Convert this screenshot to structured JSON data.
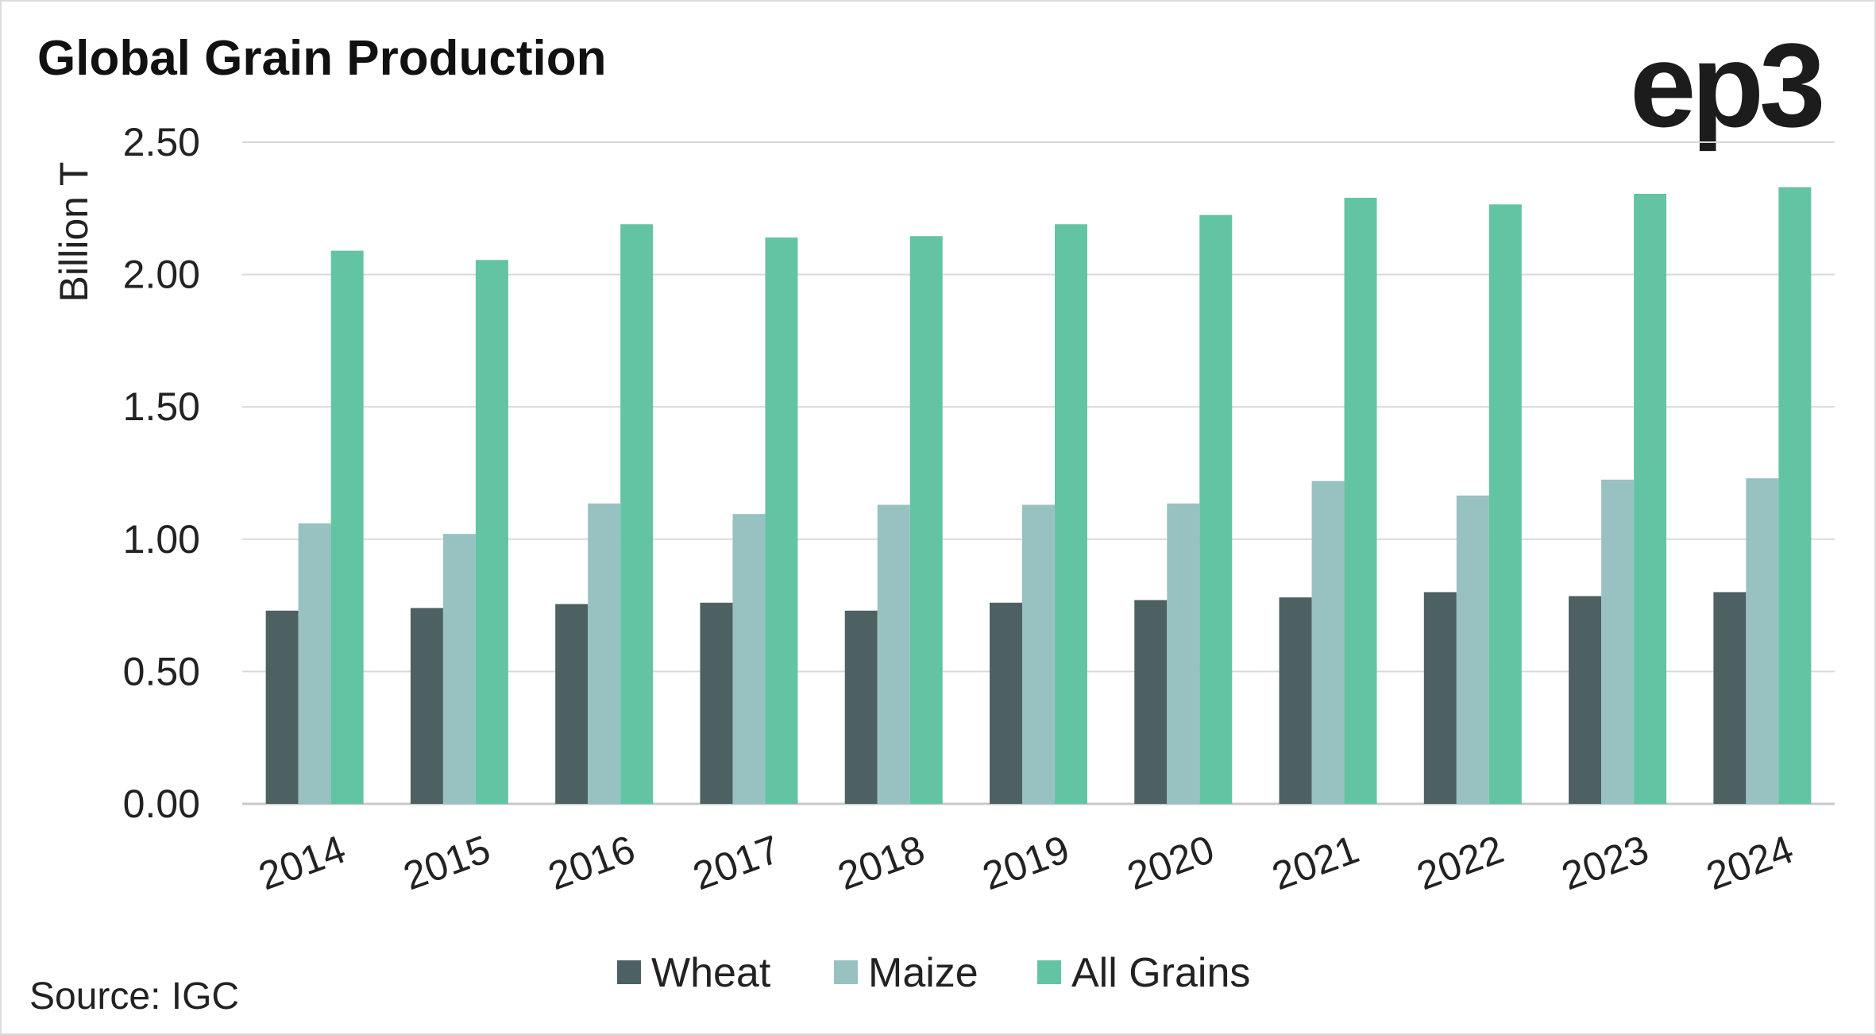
{
  "chart_data": {
    "type": "bar",
    "title": "Global Grain Production",
    "ylabel": "Billion T",
    "xlabel": "",
    "ylim": [
      0,
      2.5
    ],
    "yticks": [
      "0.00",
      "0.50",
      "1.00",
      "1.50",
      "2.00",
      "2.50"
    ],
    "ytick_values": [
      0,
      0.5,
      1.0,
      1.5,
      2.0,
      2.5
    ],
    "categories": [
      "2014",
      "2015",
      "2016",
      "2017",
      "2018",
      "2019",
      "2020",
      "2021",
      "2022",
      "2023",
      "2024"
    ],
    "series": [
      {
        "name": "Wheat",
        "color": "#4d6163",
        "values": [
          0.73,
          0.74,
          0.755,
          0.76,
          0.73,
          0.76,
          0.77,
          0.78,
          0.8,
          0.785,
          0.8
        ]
      },
      {
        "name": "Maize",
        "color": "#98c2c1",
        "values": [
          1.06,
          1.02,
          1.135,
          1.095,
          1.13,
          1.13,
          1.135,
          1.22,
          1.165,
          1.225,
          1.23
        ]
      },
      {
        "name": "All Grains",
        "color": "#63c4a3",
        "values": [
          2.09,
          2.055,
          2.19,
          2.14,
          2.145,
          2.19,
          2.225,
          2.29,
          2.265,
          2.305,
          2.33
        ]
      }
    ],
    "legend_position": "bottom",
    "grid": true
  },
  "source": "Source: IGC",
  "logo": "ep3"
}
